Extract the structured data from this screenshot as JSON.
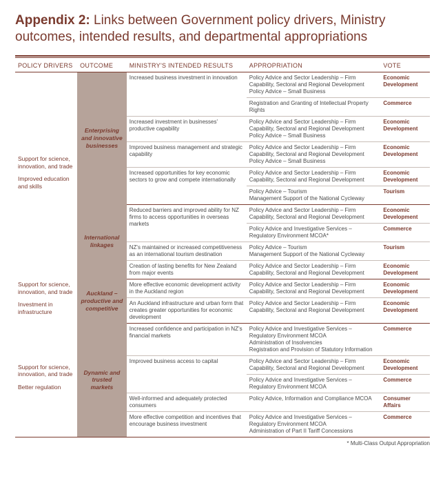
{
  "title": {
    "prefix": "Appendix 2:",
    "rest": " Links between Government policy drivers, Ministry outcomes, intended results, and departmental appropriations"
  },
  "headers": {
    "pd": "POLICY DRIVERS",
    "oc": "OUTCOME",
    "ir": "MINISTRY'S INTENDED RESULTS",
    "ap": "APPROPRIATION",
    "vt": "VOTE"
  },
  "footnote": "* Multi-Class Output Appropriation",
  "votes": {
    "ed": "Economic Development",
    "com": "Commerce",
    "tour": "Tourism",
    "ca": "Consumer Affairs"
  },
  "blocks": [
    {
      "drivers": [
        "Support for science, innovation, and trade",
        "Improved education and skills"
      ],
      "outcomes": [
        {
          "label": "Enterprising and innovative businesses",
          "rows": [
            {
              "ir": "Increased business investment in innovation",
              "aps": [
                {
                  "text": "Policy Advice and Sector Leadership – Firm Capability, Sectoral and Regional Development\nPolicy Advice – Small Business",
                  "vote": "ed"
                },
                {
                  "text": "Registration and Granting of Intellectual Property Rights",
                  "vote": "com"
                }
              ]
            },
            {
              "ir": "Increased investment in businesses' productive capability",
              "aps": [
                {
                  "text": "Policy Advice and Sector Leadership – Firm Capability, Sectoral and Regional Development\nPolicy Advice – Small Business",
                  "vote": "ed"
                }
              ]
            },
            {
              "ir": "Improved business management and strategic capability",
              "aps": [
                {
                  "text": "Policy Advice and Sector Leadership – Firm Capability, Sectoral and Regional Development\nPolicy Advice – Small Business",
                  "vote": "ed"
                }
              ]
            },
            {
              "ir": "Increased opportunities for key economic sectors to grow and compete internationally",
              "aps": [
                {
                  "text": "Policy Advice and Sector Leadership – Firm Capability, Sectoral and Regional Development",
                  "vote": "ed"
                },
                {
                  "text": "Policy Advice – Tourism\nManagement Support of the National Cycleway",
                  "vote": "tour"
                }
              ]
            }
          ]
        },
        {
          "label": "International linkages",
          "rows": [
            {
              "ir": "Reduced barriers and improved ability for NZ firms to access opportunities in overseas markets",
              "aps": [
                {
                  "text": "Policy Advice and Sector Leadership – Firm Capability, Sectoral and Regional Development",
                  "vote": "ed"
                },
                {
                  "text": "Policy Advice and Investigative Services – Regulatory Environment MCOA*",
                  "vote": "com"
                }
              ]
            },
            {
              "ir": "NZ's maintained or increased competitiveness as an international tourism destination",
              "aps": [
                {
                  "text": "Policy Advice – Tourism\nManagement Support of the National Cycleway",
                  "vote": "tour"
                }
              ]
            },
            {
              "ir": "Creation of lasting benefits for New Zealand from major events",
              "aps": [
                {
                  "text": "Policy Advice and Sector Leadership – Firm Capability, Sectoral and Regional Development",
                  "vote": "ed"
                }
              ]
            }
          ]
        }
      ]
    },
    {
      "drivers": [
        "Support for science, innovation, and trade",
        "Investment in infrastructure"
      ],
      "outcomes": [
        {
          "label": "Auckland – productive and competitive",
          "rows": [
            {
              "ir": "More effective economic development activity in the Auckland region",
              "aps": [
                {
                  "text": "Policy Advice and Sector Leadership – Firm Capability, Sectoral and Regional Development",
                  "vote": "ed"
                }
              ]
            },
            {
              "ir": "An Auckland infrastructure and urban form that creates greater opportunities for economic development",
              "aps": [
                {
                  "text": "Policy Advice and Sector Leadership – Firm Capability, Sectoral and Regional Development",
                  "vote": "ed"
                }
              ]
            }
          ]
        }
      ]
    },
    {
      "drivers": [
        "Support for science, innovation, and trade",
        "Better regulation"
      ],
      "outcomes": [
        {
          "label": "Dynamic and trusted markets",
          "rows": [
            {
              "ir": "Increased confidence and participation in NZ's financial markets",
              "aps": [
                {
                  "text": "Policy Advice and Investigative Services – Regulatory Environment MCOA\nAdministration of Insolvencies\nRegistration and Provision of Statutory Information",
                  "vote": "com"
                }
              ]
            },
            {
              "ir": "Improved business access to capital",
              "aps": [
                {
                  "text": "Policy Advice and Sector Leadership – Firm Capability, Sectoral and Regional Development",
                  "vote": "ed"
                },
                {
                  "text": "Policy Advice and Investigative Services – Regulatory Environment MCOA",
                  "vote": "com"
                }
              ]
            },
            {
              "ir": "Well-informed and adequately protected consumers",
              "aps": [
                {
                  "text": "Policy Advice, Information and Compliance MCOA",
                  "vote": "ca"
                }
              ]
            },
            {
              "ir": "More effective competition and incentives that encourage business investment",
              "aps": [
                {
                  "text": "Policy Advice and Investigative Services – Regulatory Environment MCOA\nAdministration of Part II Tariff Concessions",
                  "vote": "com"
                }
              ]
            }
          ]
        }
      ]
    }
  ]
}
